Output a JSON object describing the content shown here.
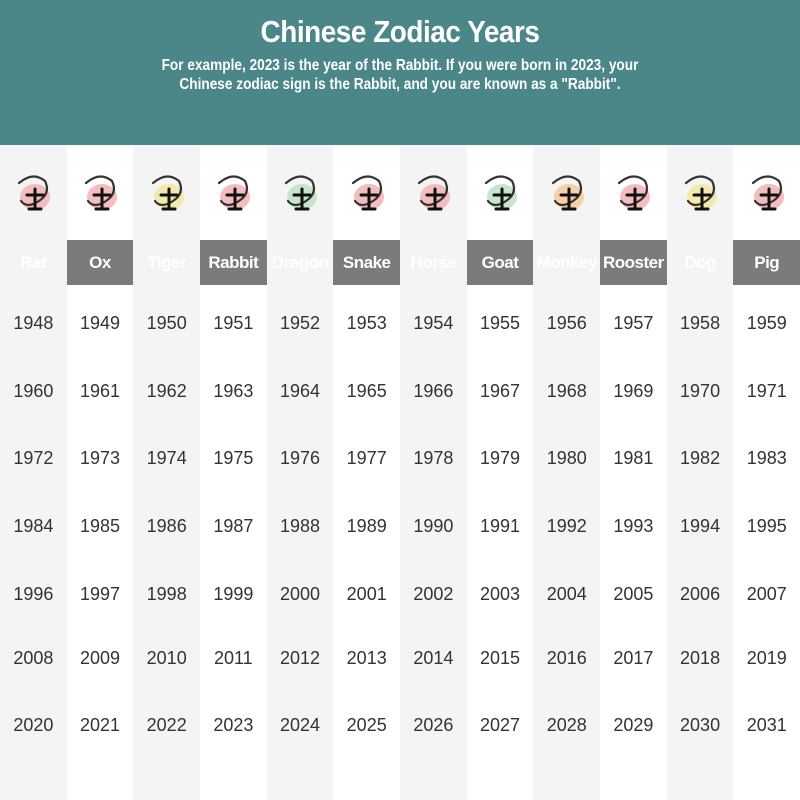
{
  "header": {
    "title": "Chinese Zodiac Years",
    "subtitle_line1": "For example, 2023 is the year of the Rabbit. If you were born in 2023, your",
    "subtitle_line2": "Chinese zodiac sign is the Rabbit, and you are known as a \"Rabbit\"."
  },
  "colors": {
    "header_bg": "#4b8788",
    "label_bar": "#7b7b7b",
    "stripe": "#f4f4f4"
  },
  "animals": [
    {
      "name": "Rat",
      "icon": "rat-icon",
      "accent": "#f2b3b3",
      "years": [
        "1948",
        "1960",
        "1972",
        "1984",
        "1996",
        "2008",
        "2020"
      ]
    },
    {
      "name": "Ox",
      "icon": "ox-icon",
      "accent": "#f2b3b3",
      "years": [
        "1949",
        "1961",
        "1973",
        "1985",
        "1997",
        "2009",
        "2021"
      ]
    },
    {
      "name": "Tiger",
      "icon": "tiger-icon",
      "accent": "#f3e6a0",
      "years": [
        "1950",
        "1962",
        "1974",
        "1986",
        "1998",
        "2010",
        "2022"
      ]
    },
    {
      "name": "Rabbit",
      "icon": "rabbit-icon",
      "accent": "#f2b3b3",
      "years": [
        "1951",
        "1963",
        "1975",
        "1987",
        "1999",
        "2011",
        "2023"
      ]
    },
    {
      "name": "Dragon",
      "icon": "dragon-icon",
      "accent": "#bfe0c4",
      "years": [
        "1952",
        "1964",
        "1976",
        "1988",
        "2000",
        "2012",
        "2024"
      ]
    },
    {
      "name": "Snake",
      "icon": "snake-icon",
      "accent": "#f2b3b3",
      "years": [
        "1953",
        "1965",
        "1977",
        "1989",
        "2001",
        "2013",
        "2025"
      ]
    },
    {
      "name": "Horse",
      "icon": "horse-icon",
      "accent": "#f2b3b3",
      "years": [
        "1954",
        "1966",
        "1978",
        "1990",
        "2002",
        "2014",
        "2026"
      ]
    },
    {
      "name": "Goat",
      "icon": "goat-icon",
      "accent": "#bfe0c4",
      "years": [
        "1955",
        "1967",
        "1979",
        "1991",
        "2003",
        "2015",
        "2027"
      ]
    },
    {
      "name": "Monkey",
      "icon": "monkey-icon",
      "accent": "#f6c99a",
      "years": [
        "1956",
        "1968",
        "1980",
        "1992",
        "2004",
        "2016",
        "2028"
      ]
    },
    {
      "name": "Rooster",
      "icon": "rooster-icon",
      "accent": "#f2b3b3",
      "years": [
        "1957",
        "1969",
        "1981",
        "1993",
        "2005",
        "2017",
        "2029"
      ]
    },
    {
      "name": "Dog",
      "icon": "dog-icon",
      "accent": "#f3e6a0",
      "years": [
        "1958",
        "1970",
        "1982",
        "1994",
        "2006",
        "2018",
        "2030"
      ]
    },
    {
      "name": "Pig",
      "icon": "pig-icon",
      "accent": "#f2b3b3",
      "years": [
        "1959",
        "1971",
        "1983",
        "1995",
        "2007",
        "2019",
        "2031"
      ]
    }
  ]
}
